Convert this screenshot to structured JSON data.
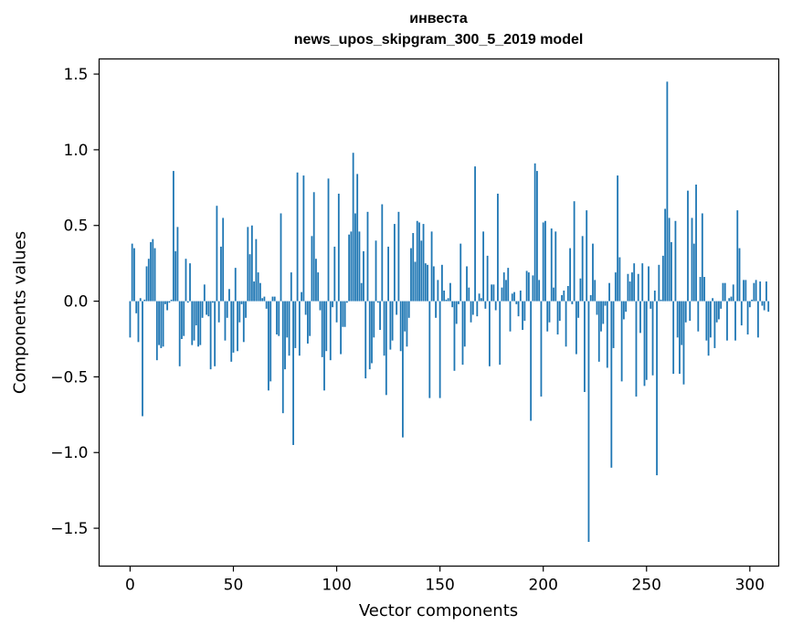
{
  "chart_data": {
    "type": "bar",
    "title_line1": "инвеста",
    "title_line2": "news_upos_skipgram_300_5_2019 model",
    "xlabel": "Vector components",
    "ylabel": "Components values",
    "xlim": [
      -15,
      314
    ],
    "ylim": [
      -1.75,
      1.6
    ],
    "xticks": [
      0,
      50,
      100,
      150,
      200,
      250,
      300
    ],
    "yticks": [
      -1.5,
      -1.0,
      -0.5,
      0.0,
      0.5,
      1.0,
      1.5
    ],
    "ytick_labels": [
      "−1.5",
      "−1.0",
      "−0.5",
      "0.0",
      "0.5",
      "1.0",
      "1.5"
    ],
    "bar_color": "#1f77b4",
    "values": [
      -0.24,
      0.38,
      0.35,
      -0.08,
      -0.27,
      0.02,
      -0.76,
      0.01,
      0.23,
      0.28,
      0.39,
      0.41,
      0.35,
      -0.39,
      -0.29,
      -0.31,
      -0.3,
      -0.02,
      -0.06,
      -0.01,
      0.01,
      0.86,
      0.33,
      0.49,
      -0.43,
      -0.25,
      -0.23,
      0.28,
      -0.01,
      0.25,
      -0.29,
      -0.26,
      -0.16,
      -0.3,
      -0.29,
      -0.11,
      0.11,
      -0.09,
      -0.1,
      -0.45,
      -0.01,
      -0.43,
      0.63,
      -0.14,
      0.36,
      0.55,
      -0.26,
      -0.11,
      0.08,
      -0.4,
      -0.34,
      0.22,
      -0.33,
      -0.14,
      -0.02,
      -0.27,
      -0.11,
      0.49,
      0.31,
      0.5,
      0.13,
      0.41,
      0.19,
      0.12,
      0.02,
      0.03,
      -0.05,
      -0.59,
      -0.53,
      0.03,
      0.03,
      -0.22,
      -0.23,
      0.58,
      -0.74,
      -0.45,
      -0.24,
      -0.36,
      0.19,
      -0.95,
      -0.31,
      0.85,
      -0.36,
      0.06,
      0.83,
      -0.09,
      -0.28,
      -0.23,
      0.43,
      0.72,
      0.28,
      0.19,
      -0.06,
      -0.37,
      -0.59,
      -0.33,
      0.81,
      -0.39,
      -0.04,
      0.36,
      -0.14,
      0.71,
      -0.35,
      -0.17,
      -0.17,
      -0.01,
      0.44,
      0.46,
      0.98,
      0.58,
      0.84,
      0.46,
      0.12,
      0.33,
      -0.51,
      0.59,
      -0.45,
      -0.41,
      -0.24,
      0.4,
      -0.01,
      -0.19,
      0.64,
      -0.36,
      -0.62,
      0.36,
      -0.32,
      -0.26,
      0.51,
      -0.09,
      0.59,
      -0.33,
      -0.9,
      -0.2,
      -0.3,
      -0.11,
      0.35,
      0.45,
      0.26,
      0.53,
      0.52,
      0.4,
      0.51,
      0.25,
      0.24,
      -0.64,
      0.46,
      0.23,
      -0.11,
      0.14,
      -0.64,
      0.24,
      0.07,
      0.01,
      0.02,
      0.12,
      -0.04,
      -0.46,
      -0.15,
      -0.02,
      0.38,
      -0.42,
      -0.3,
      0.23,
      0.09,
      -0.14,
      -0.09,
      0.89,
      -0.1,
      0.05,
      0.02,
      0.46,
      -0.05,
      0.3,
      -0.43,
      0.11,
      0.11,
      -0.06,
      0.71,
      -0.42,
      0.09,
      0.19,
      0.14,
      0.22,
      -0.2,
      0.05,
      0.06,
      -0.02,
      -0.1,
      0.07,
      -0.19,
      -0.13,
      0.2,
      0.19,
      -0.79,
      0.17,
      0.91,
      0.86,
      0.14,
      -0.63,
      0.52,
      0.53,
      -0.2,
      -0.14,
      0.48,
      0.09,
      0.46,
      -0.22,
      -0.13,
      0.04,
      0.07,
      -0.3,
      0.1,
      0.35,
      -0.02,
      0.66,
      -0.35,
      -0.11,
      0.15,
      0.43,
      -0.6,
      0.6,
      -1.59,
      0.04,
      0.38,
      0.14,
      -0.09,
      -0.4,
      -0.2,
      -0.15,
      -0.03,
      -0.44,
      0.12,
      -1.1,
      -0.31,
      0.19,
      0.83,
      0.29,
      -0.53,
      -0.12,
      -0.07,
      0.18,
      0.13,
      0.19,
      0.25,
      -0.63,
      0.18,
      -0.21,
      0.25,
      -0.56,
      -0.52,
      0.23,
      -0.05,
      -0.49,
      0.07,
      -1.15,
      0.24,
      0.01,
      0.3,
      0.61,
      1.45,
      0.55,
      0.39,
      -0.48,
      0.53,
      -0.24,
      -0.48,
      -0.29,
      -0.55,
      -0.14,
      0.73,
      -0.13,
      0.55,
      0.38,
      0.77,
      -0.2,
      0.16,
      0.58,
      0.16,
      -0.26,
      -0.36,
      -0.24,
      0.02,
      -0.31,
      -0.14,
      -0.12,
      -0.05,
      0.12,
      0.12,
      -0.26,
      0.02,
      0.03,
      0.11,
      -0.26,
      0.6,
      0.35,
      -0.16,
      0.14,
      0.14,
      -0.22,
      -0.04,
      0.01,
      0.12,
      0.14,
      -0.24,
      0.13,
      -0.03,
      -0.06,
      0.13,
      -0.07
    ]
  }
}
